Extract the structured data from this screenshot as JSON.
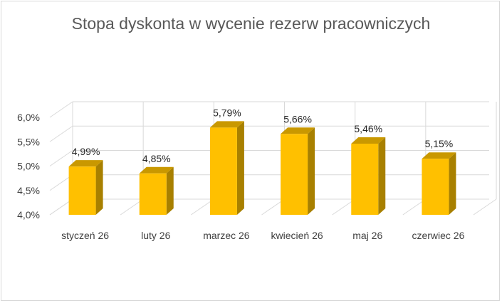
{
  "chart_data": {
    "type": "bar",
    "title": "Stopa dyskonta w wycenie rezerw pracowniczych",
    "categories": [
      "styczeń 26",
      "luty 26",
      "marzec 26",
      "kwiecień 26",
      "maj 26",
      "czerwiec 26"
    ],
    "values": [
      4.99,
      4.85,
      5.79,
      5.66,
      5.46,
      5.15
    ],
    "data_labels": [
      "4,99%",
      "4,85%",
      "5,79%",
      "5,66%",
      "5,46%",
      "5,15%"
    ],
    "ytick_labels": [
      "4,0%",
      "4,5%",
      "5,0%",
      "5,5%",
      "6,0%"
    ],
    "yticks": [
      4.0,
      4.5,
      5.0,
      5.5,
      6.0
    ],
    "ylim": [
      4.0,
      6.0
    ],
    "xlabel": "",
    "ylabel": "",
    "grid": true,
    "style": "3d-column",
    "colors": {
      "bar_front": "#FFC000",
      "bar_side": "#A88000",
      "bar_top": "#C99800",
      "grid": "#d9d9d9"
    }
  }
}
